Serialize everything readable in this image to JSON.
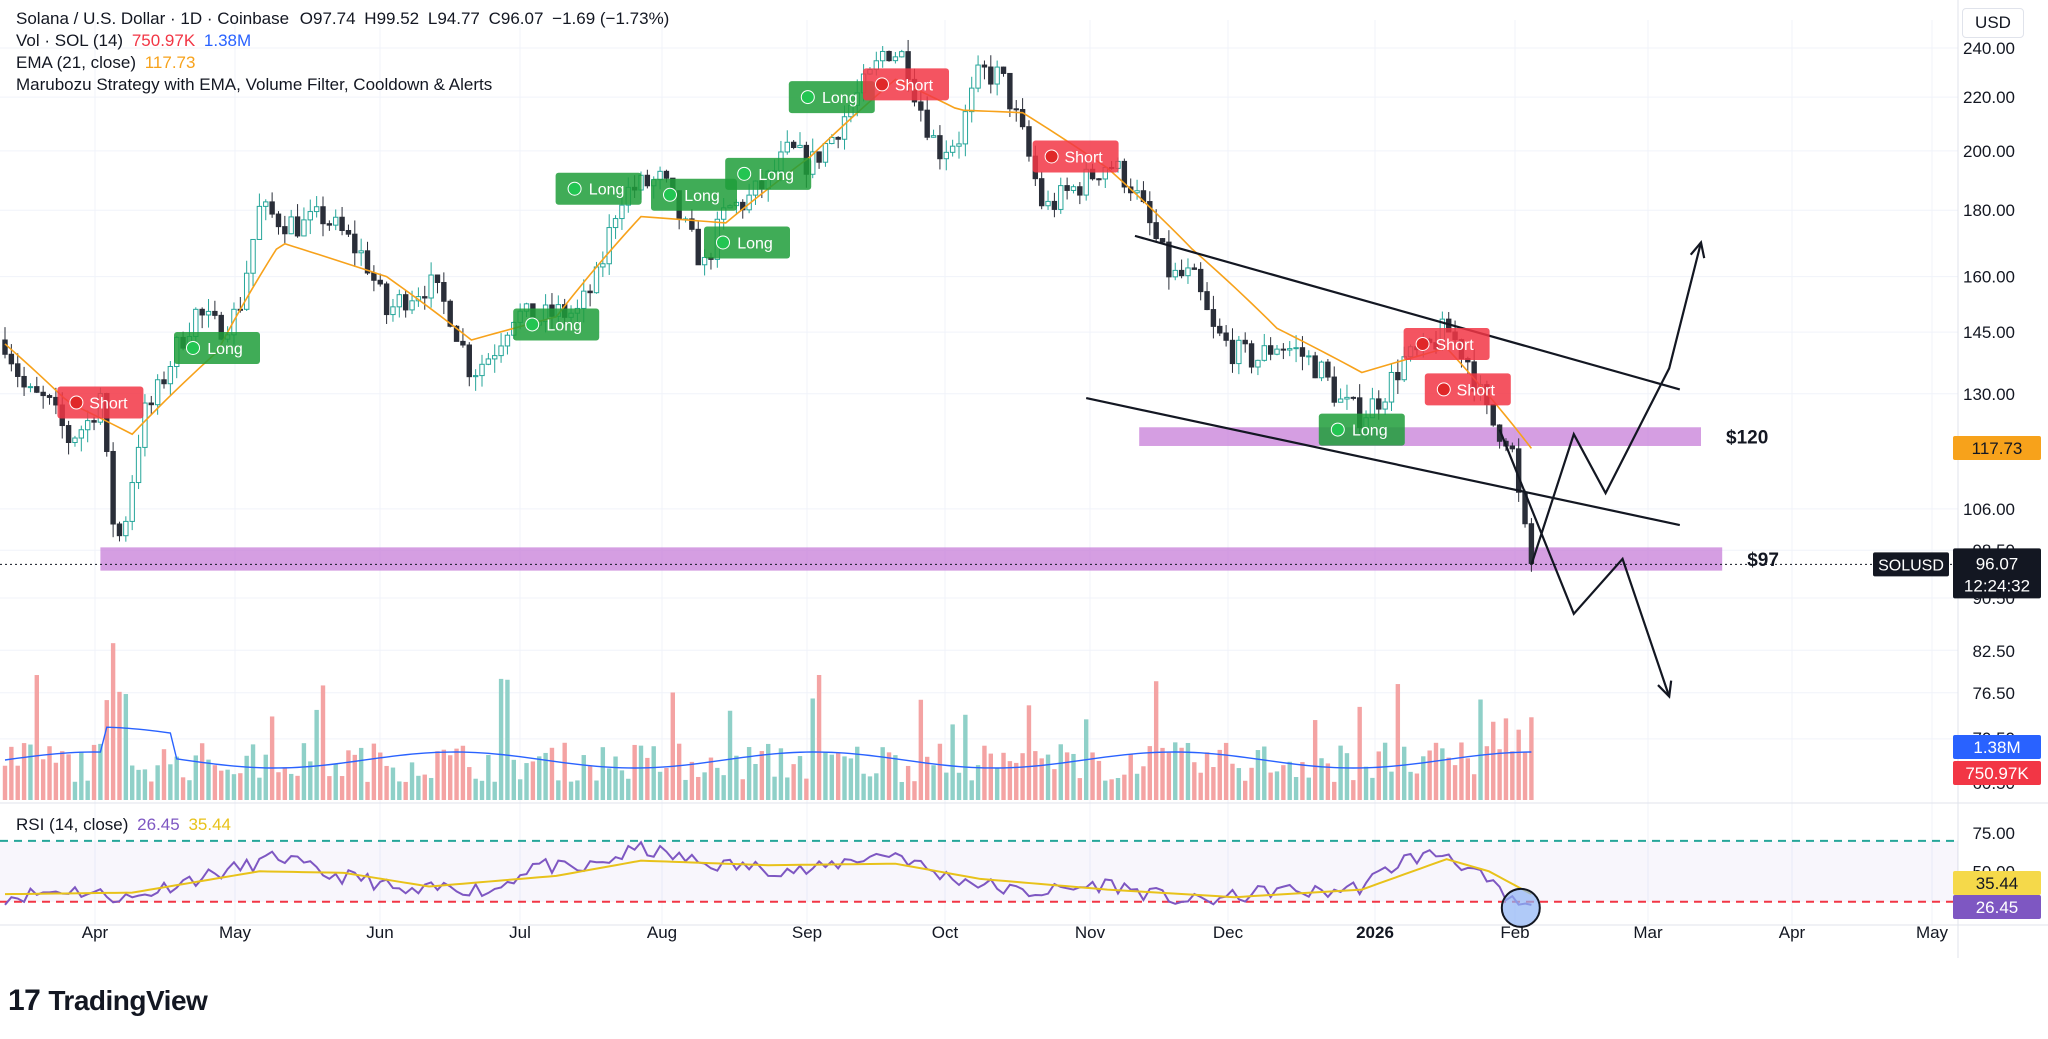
{
  "header": {
    "symbol_line": "Solana / U.S. Dollar · 1D · Coinbase",
    "ohlc": {
      "o": "O97.74",
      "h": "H99.52",
      "l": "L94.77",
      "c": "C96.07",
      "change": "−1.69 (−1.73%)"
    },
    "vol_label": "Vol · SOL (14)",
    "vol_value": "750.97K",
    "vol_ma": "1.38M",
    "ema_label": "EMA (21, close)",
    "ema_value": "117.73",
    "strategy_label": "Marubozu Strategy with EMA, Volume Filter, Cooldown & Alerts",
    "currency": "USD"
  },
  "rsi_legend": {
    "label": "RSI (14, close)",
    "value": "26.45",
    "ma": "35.44"
  },
  "brand": {
    "name": "TradingView",
    "mark": "17"
  },
  "colors": {
    "up": "#26a69a",
    "down": "#ef5350",
    "ema": "#f7a21b",
    "rsi": "#7e57c2",
    "rsi_ma": "#e8c21a",
    "zone": "#c77dd8",
    "long": "#1e9e3a",
    "short": "#f23645",
    "vol_ma": "#2962ff"
  },
  "chart_data": [
    {
      "type": "candlestick",
      "title": "Solana / U.S. Dollar · 1D · Coinbase",
      "y_axis_ticks": [
        "240.00",
        "220.00",
        "200.00",
        "180.00",
        "160.00",
        "145.00",
        "130.00",
        "106.00",
        "98.50",
        "90.50",
        "82.50",
        "76.50",
        "70.50",
        "60.50"
      ],
      "x_axis_ticks": [
        "Apr",
        "May",
        "Jun",
        "Jul",
        "Aug",
        "Sep",
        "Oct",
        "Nov",
        "Dec",
        "2026",
        "Feb",
        "Mar",
        "Apr",
        "May"
      ],
      "ylim": [
        60,
        250
      ],
      "log_scale": true,
      "price_path_key": [
        [
          0,
          143
        ],
        [
          10,
          130
        ],
        [
          20,
          128
        ],
        [
          30,
          120
        ],
        [
          40,
          124
        ],
        [
          45,
          130
        ],
        [
          50,
          105
        ],
        [
          55,
          100
        ],
        [
          60,
          112
        ],
        [
          65,
          125
        ],
        [
          70,
          128
        ],
        [
          80,
          140
        ],
        [
          90,
          150
        ],
        [
          100,
          146
        ],
        [
          110,
          150
        ],
        [
          120,
          180
        ],
        [
          130,
          177
        ],
        [
          140,
          175
        ],
        [
          150,
          178
        ],
        [
          160,
          172
        ],
        [
          170,
          165
        ],
        [
          180,
          150
        ],
        [
          190,
          155
        ],
        [
          200,
          158
        ],
        [
          210,
          150
        ],
        [
          220,
          135
        ],
        [
          230,
          140
        ],
        [
          240,
          150
        ],
        [
          250,
          148
        ],
        [
          260,
          150
        ],
        [
          270,
          150
        ],
        [
          280,
          160
        ],
        [
          290,
          185
        ],
        [
          300,
          188
        ],
        [
          310,
          190
        ],
        [
          320,
          175
        ],
        [
          330,
          163
        ],
        [
          340,
          180
        ],
        [
          350,
          183
        ],
        [
          360,
          190
        ],
        [
          370,
          200
        ],
        [
          380,
          195
        ],
        [
          390,
          205
        ],
        [
          400,
          218
        ],
        [
          410,
          230
        ],
        [
          415,
          240
        ],
        [
          425,
          236
        ],
        [
          430,
          220
        ],
        [
          440,
          200
        ],
        [
          450,
          205
        ],
        [
          460,
          230
        ],
        [
          470,
          228
        ],
        [
          480,
          205
        ],
        [
          490,
          180
        ],
        [
          500,
          185
        ],
        [
          510,
          190
        ],
        [
          520,
          196
        ],
        [
          530,
          190
        ],
        [
          540,
          175
        ],
        [
          550,
          160
        ],
        [
          560,
          160
        ],
        [
          570,
          145
        ],
        [
          580,
          140
        ],
        [
          590,
          138
        ],
        [
          600,
          142
        ],
        [
          610,
          140
        ],
        [
          620,
          136
        ],
        [
          630,
          128
        ],
        [
          640,
          125
        ],
        [
          650,
          130
        ],
        [
          660,
          138
        ],
        [
          670,
          140
        ],
        [
          680,
          146
        ],
        [
          690,
          138
        ],
        [
          700,
          124
        ],
        [
          710,
          120
        ],
        [
          715,
          105
        ],
        [
          720,
          96
        ]
      ],
      "ema_key": [
        [
          0,
          142
        ],
        [
          30,
          128
        ],
        [
          60,
          121
        ],
        [
          100,
          140
        ],
        [
          130,
          170
        ],
        [
          180,
          160
        ],
        [
          220,
          143
        ],
        [
          260,
          149
        ],
        [
          300,
          178
        ],
        [
          340,
          176
        ],
        [
          380,
          198
        ],
        [
          420,
          227
        ],
        [
          450,
          215
        ],
        [
          480,
          214
        ],
        [
          520,
          194
        ],
        [
          560,
          168
        ],
        [
          600,
          146
        ],
        [
          640,
          135
        ],
        [
          680,
          141
        ],
        [
          720,
          118
        ]
      ],
      "current_price": 96.07,
      "current_price_label": "96.07",
      "price_badge_symbol": "SOLUSD",
      "countdown": "12:24:32",
      "ema_badge": "117.73",
      "vol_badge": "1.38M",
      "vol_value_badge": "750.97K",
      "signals": [
        {
          "label": "Short",
          "kind": "short",
          "t": 45,
          "price": 128
        },
        {
          "label": "Long",
          "kind": "long",
          "t": 100,
          "price": 141
        },
        {
          "label": "Long",
          "kind": "long",
          "t": 260,
          "price": 147
        },
        {
          "label": "Long",
          "kind": "long",
          "t": 280,
          "price": 187
        },
        {
          "label": "Long",
          "kind": "long",
          "t": 325,
          "price": 185
        },
        {
          "label": "Long",
          "kind": "long",
          "t": 350,
          "price": 170
        },
        {
          "label": "Long",
          "kind": "long",
          "t": 360,
          "price": 192
        },
        {
          "label": "Long",
          "kind": "long",
          "t": 390,
          "price": 220
        },
        {
          "label": "Short",
          "kind": "short",
          "t": 425,
          "price": 225
        },
        {
          "label": "Short",
          "kind": "short",
          "t": 505,
          "price": 198
        },
        {
          "label": "Long",
          "kind": "long",
          "t": 640,
          "price": 122
        },
        {
          "label": "Short",
          "kind": "short",
          "t": 680,
          "price": 142
        },
        {
          "label": "Short",
          "kind": "short",
          "t": 690,
          "price": 131
        }
      ],
      "zones": [
        {
          "label": "$120",
          "low": 118.5,
          "high": 122.5,
          "t_start": 535,
          "t_end": 800
        },
        {
          "label": "$97",
          "low": 95,
          "high": 99,
          "t_start": 45,
          "t_end": 810
        }
      ],
      "channel": {
        "upper": [
          [
            533,
            172
          ],
          [
            790,
            131
          ]
        ],
        "lower": [
          [
            510,
            129
          ],
          [
            790,
            103
          ]
        ]
      },
      "projections": [
        [
          [
            720,
            96
          ],
          [
            740,
            121
          ],
          [
            755,
            109
          ],
          [
            785,
            136
          ],
          [
            800,
            170
          ]
        ],
        [
          [
            705,
            122
          ],
          [
            740,
            88
          ],
          [
            763,
            97
          ],
          [
            785,
            76
          ]
        ]
      ]
    },
    {
      "type": "bar",
      "title": "Vol · SOL (14)",
      "note": "volume histogram with 14-period moving average"
    },
    {
      "type": "line",
      "title": "RSI (14, close)",
      "y_axis_ticks": [
        "75.00",
        "50.00"
      ],
      "ylim": [
        20,
        85
      ],
      "levels": [
        70,
        30
      ],
      "rsi_badge": "26.45",
      "rsi_ma_badge": "35.44",
      "rsi_key": [
        [
          0,
          33
        ],
        [
          30,
          38
        ],
        [
          60,
          32
        ],
        [
          80,
          42
        ],
        [
          110,
          52
        ],
        [
          130,
          60
        ],
        [
          150,
          48
        ],
        [
          170,
          45
        ],
        [
          190,
          35
        ],
        [
          210,
          40
        ],
        [
          230,
          37
        ],
        [
          250,
          55
        ],
        [
          270,
          50
        ],
        [
          300,
          65
        ],
        [
          330,
          55
        ],
        [
          360,
          52
        ],
        [
          380,
          50
        ],
        [
          400,
          58
        ],
        [
          420,
          62
        ],
        [
          440,
          48
        ],
        [
          460,
          42
        ],
        [
          480,
          36
        ],
        [
          500,
          38
        ],
        [
          520,
          42
        ],
        [
          540,
          35
        ],
        [
          560,
          30
        ],
        [
          580,
          33
        ],
        [
          600,
          38
        ],
        [
          620,
          36
        ],
        [
          640,
          40
        ],
        [
          660,
          58
        ],
        [
          680,
          62
        ],
        [
          700,
          42
        ],
        [
          710,
          30
        ],
        [
          720,
          26
        ]
      ],
      "rsi_ma_key": [
        [
          0,
          35
        ],
        [
          60,
          36
        ],
        [
          120,
          50
        ],
        [
          160,
          49
        ],
        [
          200,
          40
        ],
        [
          260,
          47
        ],
        [
          300,
          57
        ],
        [
          360,
          54
        ],
        [
          420,
          55
        ],
        [
          460,
          45
        ],
        [
          520,
          38
        ],
        [
          580,
          33
        ],
        [
          640,
          38
        ],
        [
          680,
          58
        ],
        [
          700,
          50
        ],
        [
          720,
          35
        ]
      ]
    }
  ]
}
